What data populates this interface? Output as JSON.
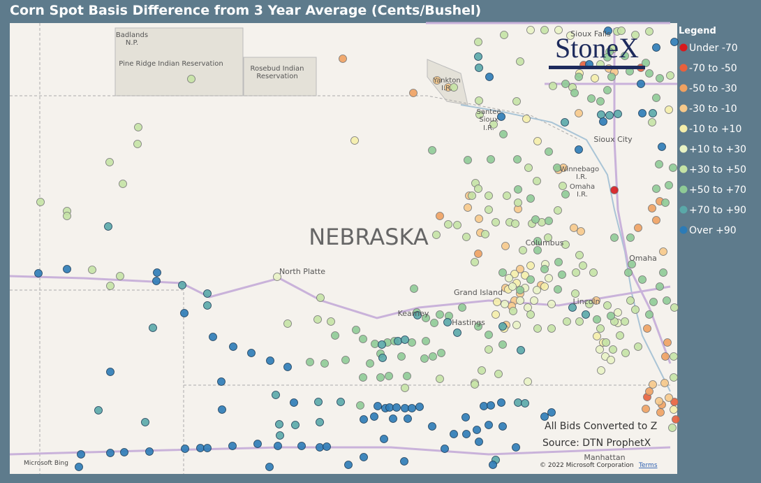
{
  "title": "Corn Spot Basis Difference from 3 Year Average (Cents/Bushel)",
  "legend": {
    "title": "Legend",
    "items": [
      {
        "label": "Under -70",
        "color": "#d7191c"
      },
      {
        "label": "-70 to -50",
        "color": "#e8603c"
      },
      {
        "label": "-50 to -30",
        "color": "#f0a160"
      },
      {
        "label": "-30 to -10",
        "color": "#f7c98a"
      },
      {
        "label": "-10 to +10",
        "color": "#f5eeaa"
      },
      {
        "label": "+10 to +30",
        "color": "#e9f3c4"
      },
      {
        "label": "+30 to +50",
        "color": "#c5e3a5"
      },
      {
        "label": "+50 to +70",
        "color": "#8fcb96"
      },
      {
        "label": "+70 to +90",
        "color": "#5aa8a8"
      },
      {
        "label": "Over +90",
        "color": "#2c7bb6"
      }
    ]
  },
  "map": {
    "places": [
      "Badlands",
      "N.P.",
      "Pine Ridge Indian Reservation",
      "Rosebud Indian",
      "Reservation",
      "Yankton",
      "I.R.",
      "Santee",
      "Sioux",
      "I.R.",
      "Sioux Falls",
      "Sioux City",
      "Winnebago",
      "I.R.",
      "Omaha",
      "I.R.",
      "NEBRASKA",
      "North Platte",
      "Columbus",
      "Grand Island",
      "Kearney",
      "Hastings",
      "Lincoln",
      "Omaha",
      "Manhattan"
    ],
    "notes": [
      "All Bids Converted to Z",
      "Source: DTN ProphetX"
    ],
    "logo": "StoneX",
    "provider": "Microsoft Bing",
    "attribution": "© 2022 Microsoft Corporation",
    "terms": "Terms"
  }
}
